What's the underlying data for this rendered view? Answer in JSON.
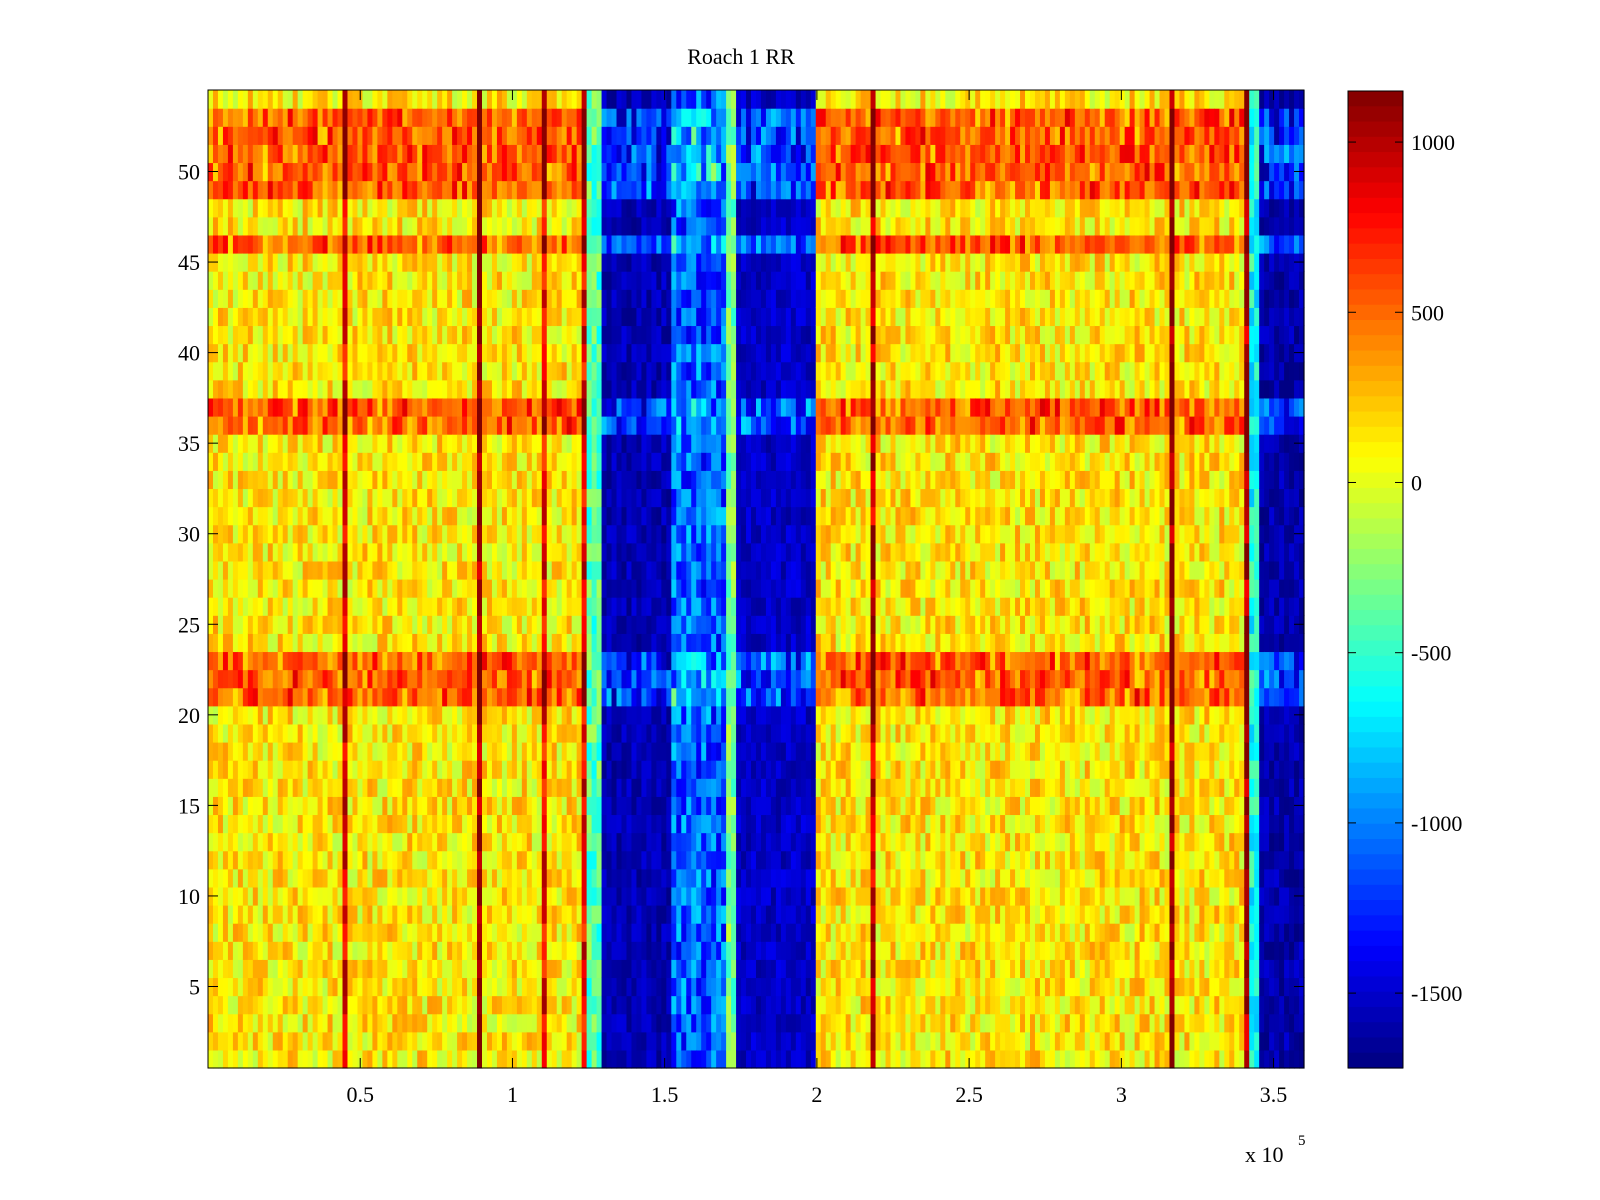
{
  "chart_data": {
    "type": "heatmap",
    "title": "Roach 1 RR",
    "xlabel": "",
    "ylabel": "",
    "x_exponent_label": "x 10",
    "x_exponent_power": "5",
    "xlim": [
      0,
      360000
    ],
    "ylim": [
      0.5,
      54.5
    ],
    "x_ticks": [
      50000,
      100000,
      150000,
      200000,
      250000,
      300000,
      350000
    ],
    "x_tick_labels": [
      "0.5",
      "1",
      "1.5",
      "2",
      "2.5",
      "3",
      "3.5"
    ],
    "y_ticks": [
      5,
      10,
      15,
      20,
      25,
      30,
      35,
      40,
      45,
      50
    ],
    "y_tick_labels": [
      "5",
      "10",
      "15",
      "20",
      "25",
      "30",
      "35",
      "40",
      "45",
      "50"
    ],
    "rows": 54,
    "colormap": "jet",
    "clim": [
      -1720,
      1150
    ],
    "colorbar_ticks": [
      1000,
      500,
      0,
      -500,
      -1000,
      -1500
    ],
    "colorbar_tick_labels": [
      "1000",
      "500",
      "0",
      "-500",
      "-1000",
      "-1500"
    ],
    "grid": false,
    "bands": [
      {
        "x_start": 0,
        "x_end": 125000,
        "level": "high",
        "mean": 120
      },
      {
        "x_start": 125000,
        "x_end": 130000,
        "level": "transition",
        "mean": -400
      },
      {
        "x_start": 130000,
        "x_end": 152000,
        "level": "very-low",
        "mean": -1700
      },
      {
        "x_start": 152000,
        "x_end": 170000,
        "level": "low",
        "mean": -1100
      },
      {
        "x_start": 170000,
        "x_end": 174000,
        "level": "mid",
        "mean": -300
      },
      {
        "x_start": 174000,
        "x_end": 200000,
        "level": "very-low",
        "mean": -1650
      },
      {
        "x_start": 200000,
        "x_end": 342000,
        "level": "high",
        "mean": 130
      },
      {
        "x_start": 342000,
        "x_end": 346000,
        "level": "transition",
        "mean": -600
      },
      {
        "x_start": 346000,
        "x_end": 360000,
        "level": "very-low",
        "mean": -1720
      }
    ],
    "highlight_rows": [
      [
        21,
        23
      ],
      [
        36,
        37
      ],
      [
        46,
        46
      ],
      [
        49,
        53
      ]
    ]
  }
}
